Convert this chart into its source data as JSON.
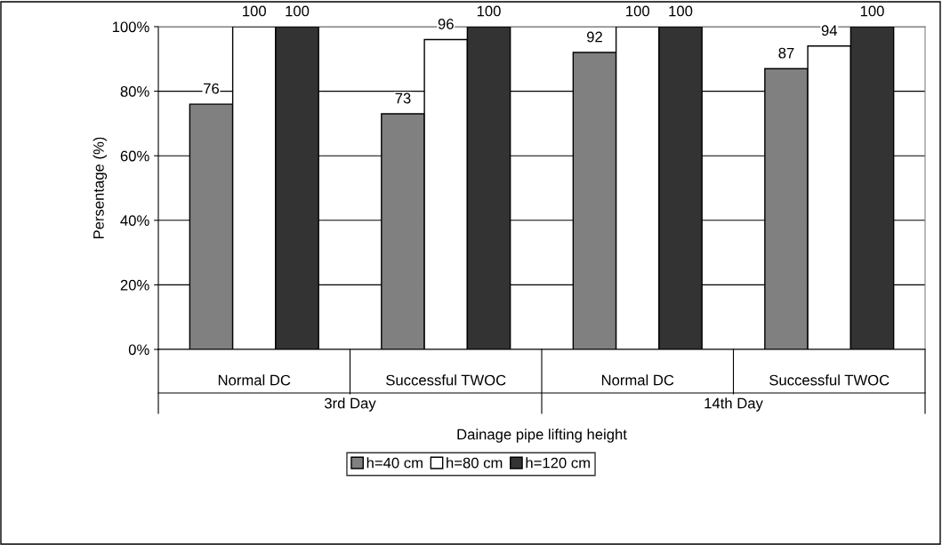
{
  "chart_data": {
    "type": "bar",
    "categories": [
      "Normal DC",
      "Successful TWOC",
      "Normal DC",
      "Successful TWOC"
    ],
    "series": [
      {
        "name": "h=40 cm",
        "color": "#808080",
        "values": [
          76,
          73,
          92,
          87
        ]
      },
      {
        "name": "h=80 cm",
        "color": "#ffffff",
        "values": [
          100,
          96,
          100,
          94
        ]
      },
      {
        "name": "h=120 cm",
        "color": "#333333",
        "values": [
          100,
          100,
          100,
          100
        ]
      }
    ],
    "xlabel": "Dainage pipe lifting height",
    "ylabel": "Persentage (%)",
    "annotations": [
      "3rd Day",
      "14th Day"
    ],
    "ylim": [
      0,
      100
    ],
    "yticks": [
      {
        "value": 0,
        "label": "0%"
      },
      {
        "value": 20,
        "label": "20%"
      },
      {
        "value": 40,
        "label": "40%"
      },
      {
        "value": 60,
        "label": "60%"
      },
      {
        "value": 80,
        "label": "80%"
      },
      {
        "value": 100,
        "label": "100%"
      }
    ],
    "grid": "y",
    "legend": "bottom",
    "data_labels": true
  }
}
